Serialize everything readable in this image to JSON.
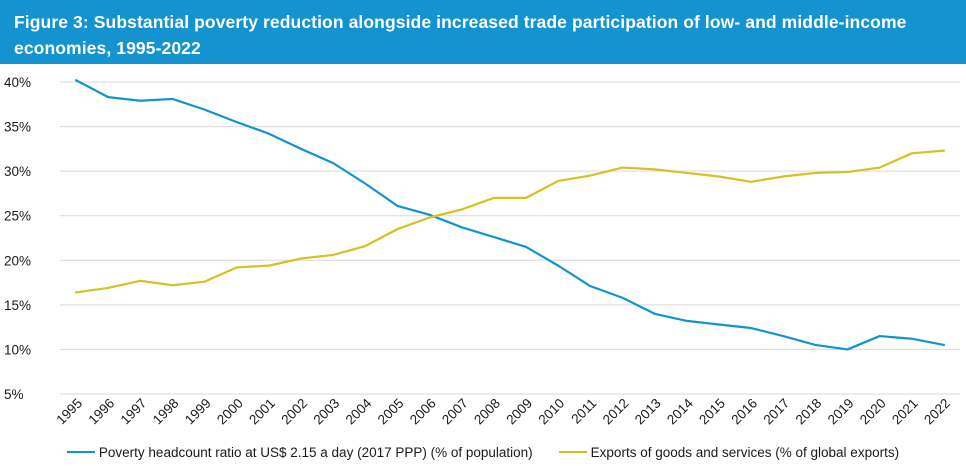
{
  "figure": {
    "title": "Figure 3: Substantial poverty reduction alongside increased trade participation of low- and middle-income economies, 1995-2022"
  },
  "colors": {
    "header_bg": "#1393cf",
    "poverty_line": "#1393cf",
    "exports_line": "#d3c322",
    "gridline": "#d9d9d9"
  },
  "chart_data": {
    "type": "line",
    "title": "",
    "xlabel": "",
    "ylabel": "",
    "x": [
      "1995",
      "1996",
      "1997",
      "1998",
      "1999",
      "2000",
      "2001",
      "2002",
      "2003",
      "2004",
      "2005",
      "2006",
      "2007",
      "2008",
      "2009",
      "2010",
      "2011",
      "2012",
      "2013",
      "2014",
      "2015",
      "2016",
      "2017",
      "2018",
      "2019",
      "2020",
      "2021",
      "2022"
    ],
    "ylim": [
      5,
      40
    ],
    "yticks": [
      5,
      10,
      15,
      20,
      25,
      30,
      35,
      40
    ],
    "ytick_labels": [
      "5%",
      "10%",
      "15%",
      "20%",
      "25%",
      "30%",
      "35%",
      "40%"
    ],
    "grid": "horizontal",
    "legend_position": "bottom",
    "series": [
      {
        "name": "Poverty headcount ratio at US$ 2.15 a day (2017 PPP) (% of population)",
        "color": "#1393cf",
        "values": [
          40.2,
          38.3,
          37.9,
          38.1,
          36.9,
          35.5,
          34.2,
          32.5,
          30.9,
          28.6,
          26.1,
          25.1,
          23.7,
          22.6,
          21.5,
          19.4,
          17.1,
          15.8,
          14.0,
          13.2,
          12.8,
          12.4,
          11.5,
          10.5,
          10.0,
          11.5,
          11.2,
          10.5
        ]
      },
      {
        "name": "Exports of goods and services (% of global exports)",
        "color": "#d3c322",
        "values": [
          16.4,
          16.9,
          17.7,
          17.2,
          17.6,
          19.2,
          19.4,
          20.2,
          20.6,
          21.6,
          23.5,
          24.8,
          25.7,
          27.0,
          27.0,
          28.9,
          29.5,
          30.4,
          30.2,
          29.8,
          29.4,
          28.8,
          29.4,
          29.8,
          29.9,
          30.4,
          32.0,
          32.3
        ]
      }
    ]
  }
}
